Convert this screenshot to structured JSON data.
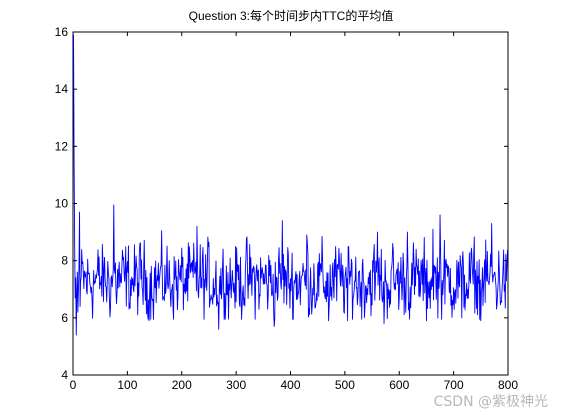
{
  "chart_data": {
    "type": "line",
    "title": "Question 3:每个时间步内TTC的平均值",
    "xlabel": "",
    "ylabel": "",
    "xlim": [
      0,
      800
    ],
    "ylim": [
      4,
      16
    ],
    "xticks": [
      0,
      100,
      200,
      300,
      400,
      500,
      600,
      700,
      800
    ],
    "yticks": [
      4,
      6,
      8,
      10,
      12,
      14,
      16
    ],
    "grid": false,
    "series": [
      {
        "color": "#0000ff",
        "x_start": 1,
        "x_step": 1,
        "n_points": 800,
        "initial_values": [
          [
            1,
            15.9
          ],
          [
            2,
            11.5
          ],
          [
            3,
            8.6
          ],
          [
            4,
            6.7
          ],
          [
            5,
            7.4
          ],
          [
            6,
            5.4
          ],
          [
            7,
            6.9
          ],
          [
            8,
            7.6
          ],
          [
            9,
            6.2
          ],
          [
            10,
            7.0
          ],
          [
            11,
            7.8
          ],
          [
            12,
            9.7
          ],
          [
            13,
            6.4
          ],
          [
            14,
            7.3
          ]
        ],
        "level": 7.3,
        "typical_range": [
          6.0,
          9.0
        ],
        "notable_peaks": [
          [
            12,
            9.7
          ],
          [
            75,
            9.95
          ],
          [
            228,
            9.2
          ],
          [
            385,
            9.4
          ],
          [
            430,
            8.9
          ],
          [
            560,
            9.0
          ],
          [
            615,
            9.0
          ],
          [
            662,
            9.1
          ],
          [
            675,
            9.6
          ],
          [
            770,
            9.3
          ]
        ],
        "notable_troughs": [
          [
            6,
            5.4
          ],
          [
            140,
            5.9
          ],
          [
            268,
            5.6
          ],
          [
            370,
            5.7
          ],
          [
            470,
            5.9
          ],
          [
            505,
            5.9
          ],
          [
            572,
            5.8
          ],
          [
            650,
            5.9
          ],
          [
            715,
            6.0
          ],
          [
            750,
            5.9
          ]
        ]
      }
    ]
  },
  "watermark": "CSDN @紫极神光"
}
